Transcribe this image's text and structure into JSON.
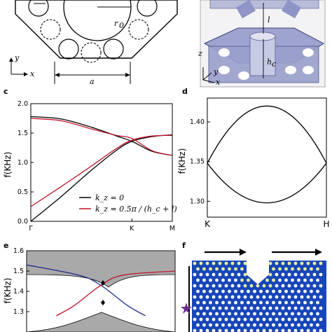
{
  "panels": {
    "a": {
      "labels": {
        "r": "r",
        "r0": "r",
        "r0_sub": "0",
        "x": "x",
        "y": "y",
        "a": "a"
      }
    },
    "b": {
      "labels": {
        "l": "l",
        "hc": "h",
        "hc_sub": "c",
        "x": "x",
        "y": "y",
        "z": "z"
      }
    },
    "c": {
      "letter": "c",
      "ylabel": "f(KHz)",
      "yticks": [
        "2.0",
        "1.5",
        "1.0",
        "0.5",
        "0.0"
      ],
      "xticks": [
        "Γ",
        "K",
        "M"
      ],
      "legend": [
        "k_z = 0",
        "k_z = 0.5π / (h_c + l)"
      ]
    },
    "d": {
      "letter": "d",
      "ylabel": "f(KHz)",
      "yticks": [
        "1.40",
        "1.35",
        "1.30"
      ],
      "xticks": [
        "K",
        "H"
      ]
    },
    "e": {
      "letter": "e",
      "ylabel": "f(KHz)",
      "yticks": [
        "1.6",
        "1.5",
        "1.4",
        "1.3"
      ]
    },
    "f": {
      "letter": "f"
    }
  },
  "colors": {
    "black_band": "#000000",
    "red_band": "#c0142c",
    "blue_band": "#1f2d8a",
    "bulk_gray": "#a9a9a9",
    "sim_bg": "#1746b8"
  },
  "chart_data": [
    {
      "type": "line",
      "panel": "c",
      "ylabel": "f(KHz)",
      "ylim": [
        0.0,
        2.0
      ],
      "x": [
        "Γ",
        "K",
        "M"
      ],
      "series": [
        {
          "name": "k_z = 0",
          "color": "#000000",
          "points": [
            [
              0,
              0.0
            ],
            [
              0.3,
              0.42
            ],
            [
              0.6,
              0.87
            ],
            [
              0.85,
              1.21
            ],
            [
              1.0,
              1.36
            ],
            [
              1.2,
              1.44
            ],
            [
              1.4,
              1.47
            ]
          ]
        },
        {
          "name": "k_z = 0",
          "color": "#000000",
          "points": [
            [
              0,
              1.78
            ],
            [
              0.3,
              1.74
            ],
            [
              0.6,
              1.6
            ],
            [
              0.85,
              1.45
            ],
            [
              1.0,
              1.36
            ],
            [
              1.2,
              1.19
            ],
            [
              1.4,
              1.12
            ]
          ]
        },
        {
          "name": "k_z = 0.5π / (h_c + l)",
          "color": "#c0142c",
          "points": [
            [
              0,
              0.25
            ],
            [
              0.3,
              0.59
            ],
            [
              0.6,
              0.94
            ],
            [
              0.85,
              1.24
            ],
            [
              1.0,
              1.38
            ],
            [
              1.2,
              1.45
            ],
            [
              1.4,
              1.46
            ]
          ]
        },
        {
          "name": "k_z = 0.5π / (h_c + l)",
          "color": "#c0142c",
          "points": [
            [
              0,
              1.75
            ],
            [
              0.3,
              1.71
            ],
            [
              0.6,
              1.57
            ],
            [
              0.85,
              1.46
            ],
            [
              1.0,
              1.41
            ],
            [
              1.2,
              1.2
            ],
            [
              1.4,
              1.12
            ]
          ]
        }
      ]
    },
    {
      "type": "line",
      "panel": "d",
      "ylabel": "f(KHz)",
      "ylim": [
        1.28,
        1.43
      ],
      "x": [
        "K",
        "H"
      ],
      "series": [
        {
          "color": "#000000",
          "points": [
            [
              0,
              1.348
            ],
            [
              0.5,
              1.42
            ],
            [
              1.0,
              1.348
            ]
          ]
        },
        {
          "color": "#000000",
          "points": [
            [
              0,
              1.348
            ],
            [
              0.5,
              1.298
            ],
            [
              1.0,
              1.348
            ]
          ]
        }
      ]
    },
    {
      "type": "line",
      "panel": "e",
      "ylabel": "f(KHz)",
      "ylim": [
        1.2,
        1.6
      ],
      "series": [
        {
          "color": "#1f2d8a",
          "points": [
            [
              0.0,
              1.53
            ],
            [
              0.35,
              1.48
            ],
            [
              0.5,
              1.43
            ],
            [
              0.68,
              1.33
            ],
            [
              0.8,
              1.28
            ]
          ]
        },
        {
          "color": "#c0142c",
          "points": [
            [
              0.2,
              1.28
            ],
            [
              0.32,
              1.33
            ],
            [
              0.5,
              1.43
            ],
            [
              0.65,
              1.48
            ],
            [
              1.0,
              1.5
            ]
          ]
        }
      ]
    }
  ]
}
